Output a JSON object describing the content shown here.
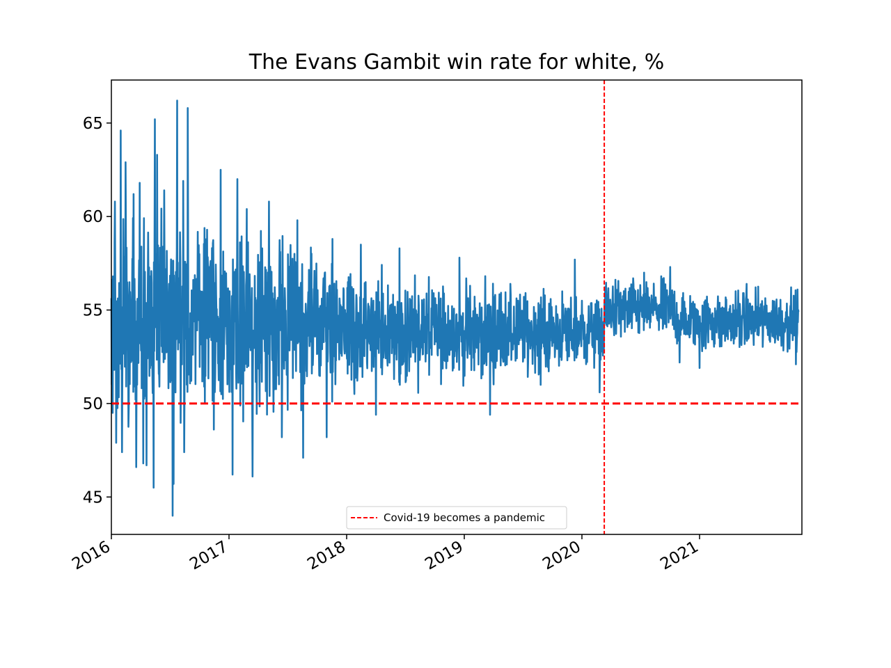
{
  "chart_data": {
    "type": "line",
    "title": "The Evans Gambit win rate for white, %",
    "xlabel": "",
    "ylabel": "",
    "xlim": [
      2016.0,
      2021.87
    ],
    "ylim": [
      43.0,
      67.3
    ],
    "x_ticks": [
      2016,
      2017,
      2018,
      2019,
      2020,
      2021
    ],
    "x_tick_labels": [
      "2016",
      "2017",
      "2018",
      "2019",
      "2020",
      "2021"
    ],
    "y_ticks": [
      45,
      50,
      55,
      60,
      65
    ],
    "y_tick_labels": [
      "45",
      "50",
      "55",
      "60",
      "65"
    ],
    "series": [
      {
        "name": "win rate",
        "color": "#1f77b4",
        "description": "daily win rate; noisy series centered ~54, very volatile in 2016-2017 narrowing over time",
        "x_start": 2016.0,
        "x_end": 2021.84,
        "spike_points": [
          {
            "x": 2016.03,
            "y": 60.8
          },
          {
            "x": 2016.08,
            "y": 64.6
          },
          {
            "x": 2016.12,
            "y": 62.9
          },
          {
            "x": 2016.19,
            "y": 61.2
          },
          {
            "x": 2016.24,
            "y": 61.8
          },
          {
            "x": 2016.37,
            "y": 65.2
          },
          {
            "x": 2016.39,
            "y": 63.3
          },
          {
            "x": 2016.45,
            "y": 61.4
          },
          {
            "x": 2016.52,
            "y": 62.0
          },
          {
            "x": 2016.56,
            "y": 66.2
          },
          {
            "x": 2016.61,
            "y": 61.9
          },
          {
            "x": 2016.65,
            "y": 65.8
          },
          {
            "x": 2016.93,
            "y": 62.5
          },
          {
            "x": 2017.07,
            "y": 62.0
          },
          {
            "x": 2017.15,
            "y": 60.4
          },
          {
            "x": 2017.34,
            "y": 60.8
          },
          {
            "x": 2017.58,
            "y": 59.8
          },
          {
            "x": 2017.88,
            "y": 58.8
          },
          {
            "x": 2018.12,
            "y": 58.5
          },
          {
            "x": 2018.45,
            "y": 58.3
          },
          {
            "x": 2018.96,
            "y": 57.8
          },
          {
            "x": 2019.65,
            "y": 57.3
          },
          {
            "x": 2019.94,
            "y": 57.7
          },
          {
            "x": 2020.53,
            "y": 57.0
          },
          {
            "x": 2020.75,
            "y": 57.3
          },
          {
            "x": 2021.4,
            "y": 56.4
          },
          {
            "x": 2016.01,
            "y": 49.5
          },
          {
            "x": 2016.04,
            "y": 47.9
          },
          {
            "x": 2016.09,
            "y": 47.4
          },
          {
            "x": 2016.21,
            "y": 46.6
          },
          {
            "x": 2016.27,
            "y": 46.8
          },
          {
            "x": 2016.3,
            "y": 46.7
          },
          {
            "x": 2016.36,
            "y": 45.5
          },
          {
            "x": 2016.52,
            "y": 44.0
          },
          {
            "x": 2016.53,
            "y": 45.7
          },
          {
            "x": 2016.62,
            "y": 47.4
          },
          {
            "x": 2017.03,
            "y": 46.2
          },
          {
            "x": 2017.2,
            "y": 46.1
          },
          {
            "x": 2017.45,
            "y": 48.2
          },
          {
            "x": 2017.63,
            "y": 47.1
          },
          {
            "x": 2017.83,
            "y": 48.2
          },
          {
            "x": 2018.25,
            "y": 49.4
          },
          {
            "x": 2019.22,
            "y": 49.4
          },
          {
            "x": 2019.65,
            "y": 51.0
          },
          {
            "x": 2020.15,
            "y": 50.6
          },
          {
            "x": 2020.83,
            "y": 52.2
          },
          {
            "x": 2021.0,
            "y": 51.9
          },
          {
            "x": 2021.82,
            "y": 52.1
          }
        ]
      }
    ],
    "reference_lines": [
      {
        "orientation": "horizontal",
        "value": 50,
        "color": "#ff0000",
        "style": "dashed"
      },
      {
        "orientation": "vertical",
        "value": 2020.19,
        "color": "#ff0000",
        "style": "dashed",
        "label": "Covid-19 becomes a pandemic"
      }
    ],
    "legend": {
      "position": "lower-center",
      "entries": [
        {
          "label": "Covid-19 becomes a pandemic",
          "color": "#ff0000",
          "style": "dashed"
        }
      ]
    },
    "grid": false
  }
}
